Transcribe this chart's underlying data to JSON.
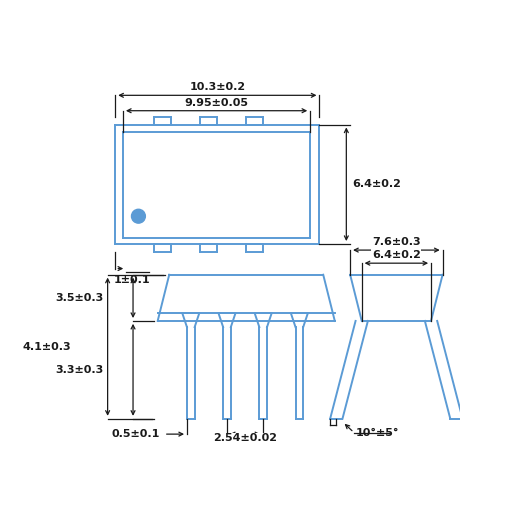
{
  "blue": "#5b9bd5",
  "black": "#1a1a1a",
  "bg": "#ffffff",
  "labels": {
    "dim_10p3": "10.3±0.2",
    "dim_9p95": "9.95±0.05",
    "dim_6p4_top": "6.4±0.2",
    "dim_1": "1±0.1",
    "dim_4p1": "4.1±0.3",
    "dim_3p5": "3.5±0.3",
    "dim_3p3": "3.3±0.3",
    "dim_0p5": "0.5±0.1",
    "dim_2p54": "2.54±0.02",
    "dim_7p6": "7.6±0.3",
    "dim_6p4_side": "6.4±0.2",
    "dim_10deg": "10°±5°"
  }
}
